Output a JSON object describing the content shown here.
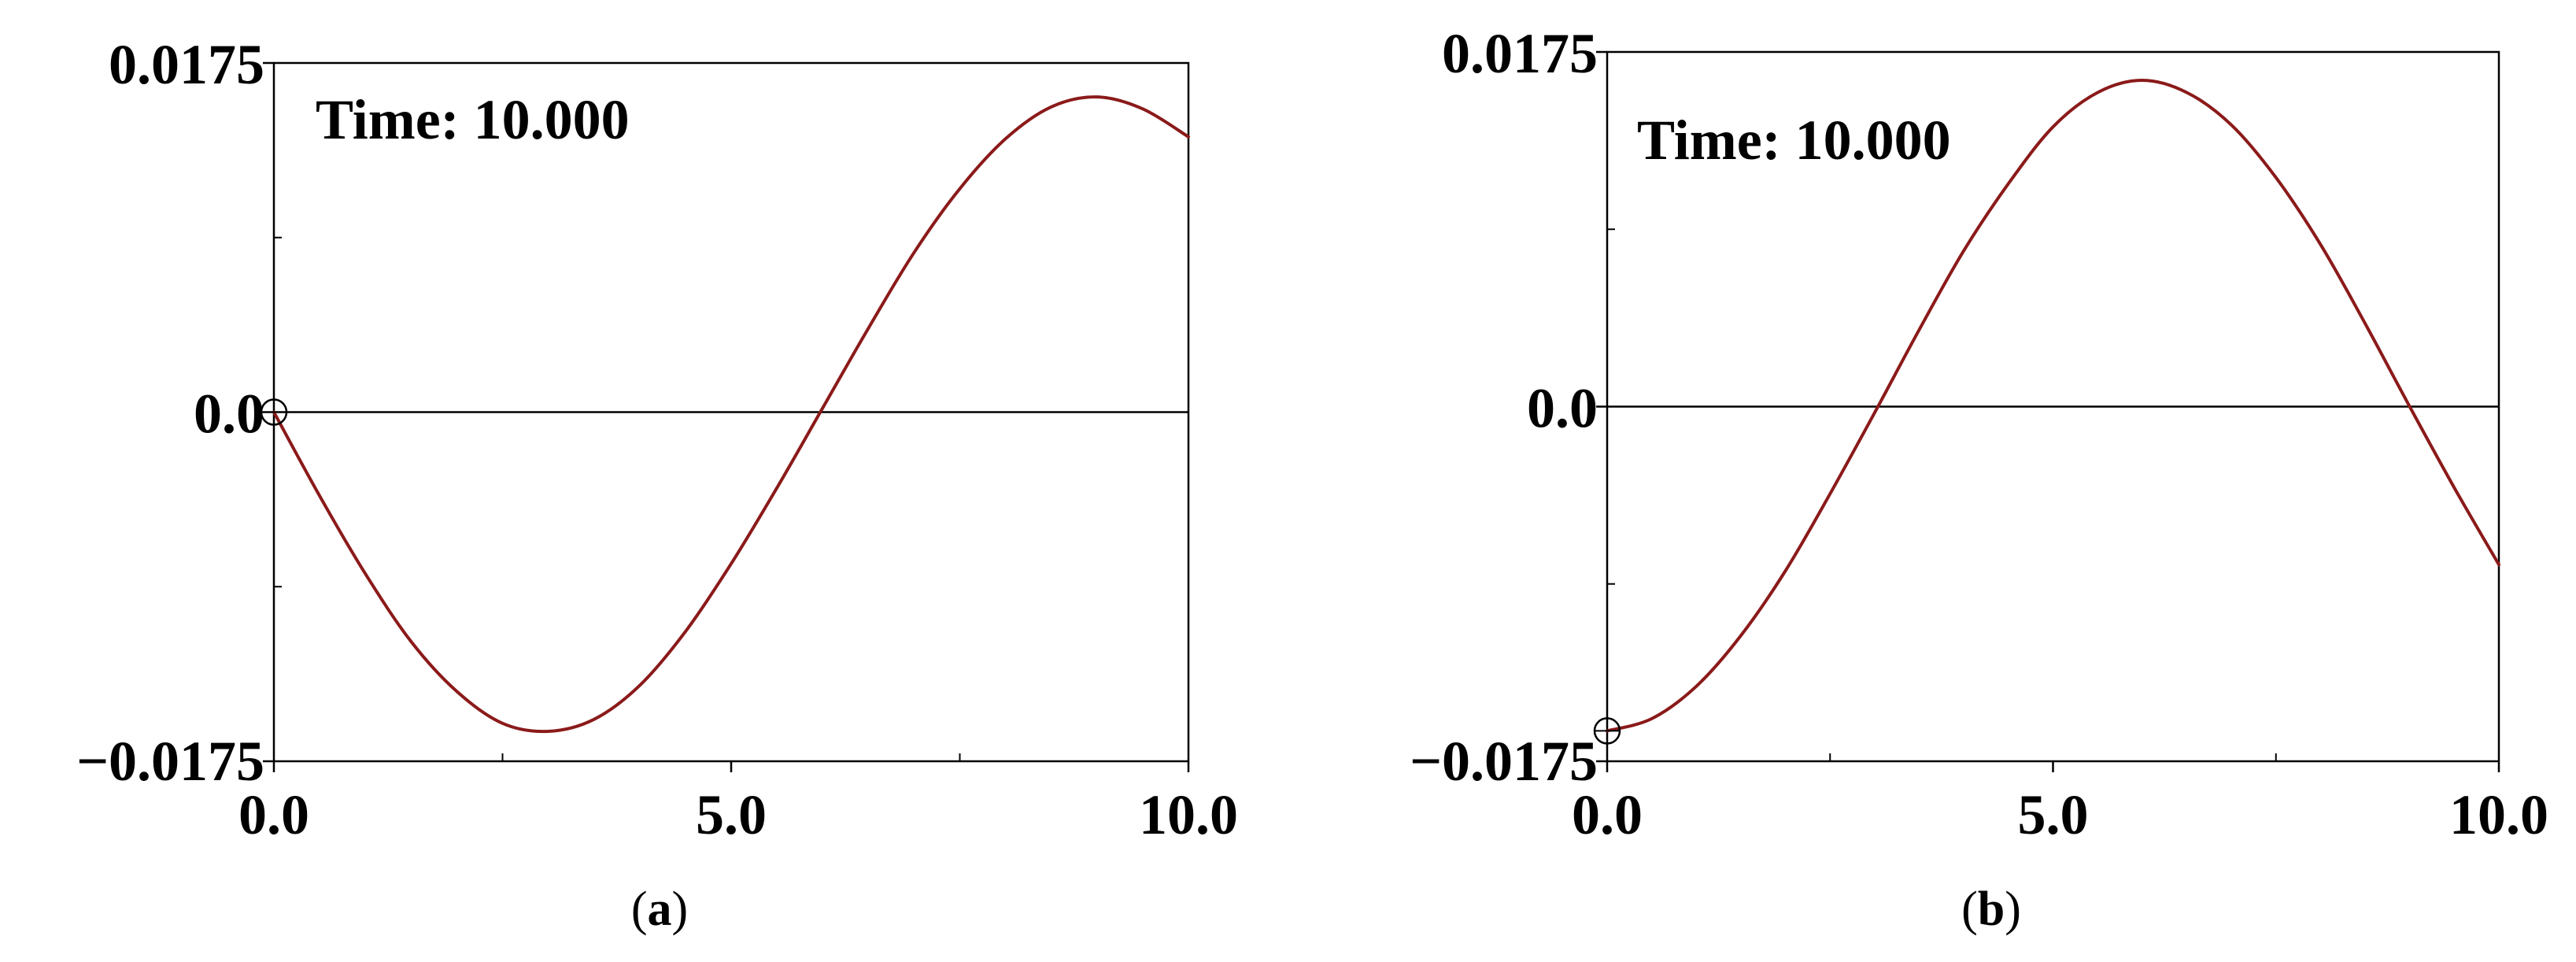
{
  "chart_data": [
    {
      "type": "line",
      "panel_label": "a",
      "annotation": "Time: 10.000",
      "xlim": [
        0,
        10
      ],
      "ylim": [
        -0.0175,
        0.0175
      ],
      "x_tick_labels": [
        "0.0",
        "5.0",
        "10.0"
      ],
      "y_tick_labels": [
        "0.0175",
        "0.0",
        "−0.0175"
      ],
      "y_zero_line": true,
      "start_marker": {
        "x": 0.0,
        "y": 0.0
      },
      "line_color": "#8b1a1a",
      "series": [
        {
          "x": [
            0.0,
            0.5,
            1.0,
            1.5,
            2.0,
            2.5,
            3.0,
            3.5,
            4.0,
            4.5,
            5.0,
            5.5,
            6.0,
            6.5,
            7.0,
            7.5,
            8.0,
            8.5,
            9.0,
            9.5,
            10.0
          ],
          "y": [
            0.0,
            -0.0042,
            -0.0081,
            -0.0115,
            -0.014,
            -0.0156,
            -0.016,
            -0.0154,
            -0.0137,
            -0.011,
            -0.0076,
            -0.0038,
            0.0002,
            0.0042,
            0.008,
            0.0112,
            0.0137,
            0.0153,
            0.0158,
            0.0152,
            0.0138
          ]
        }
      ]
    },
    {
      "type": "line",
      "panel_label": "b",
      "annotation": "Time: 10.000",
      "xlim": [
        0,
        10
      ],
      "ylim": [
        -0.0175,
        0.0175
      ],
      "x_tick_labels": [
        "0.0",
        "5.0",
        "10.0"
      ],
      "y_tick_labels": [
        "0.0175",
        "0.0",
        "−0.0175"
      ],
      "y_zero_line": true,
      "start_marker": {
        "x": 0.0,
        "y": -0.016
      },
      "line_color": "#8b1a1a",
      "series": [
        {
          "x": [
            0.0,
            0.5,
            1.0,
            1.5,
            2.0,
            2.5,
            3.0,
            3.5,
            4.0,
            4.5,
            5.0,
            5.5,
            6.0,
            6.5,
            7.0,
            7.5,
            8.0,
            8.5,
            9.0,
            9.5,
            10.0
          ],
          "y": [
            -0.016,
            -0.0154,
            -0.0138,
            -0.0113,
            -0.0081,
            -0.0043,
            -0.0003,
            0.0038,
            0.0077,
            0.011,
            0.0138,
            0.0155,
            0.0161,
            0.0155,
            0.0139,
            0.0113,
            0.008,
            0.0041,
            0.0,
            -0.004,
            -0.0078
          ]
        }
      ]
    }
  ]
}
